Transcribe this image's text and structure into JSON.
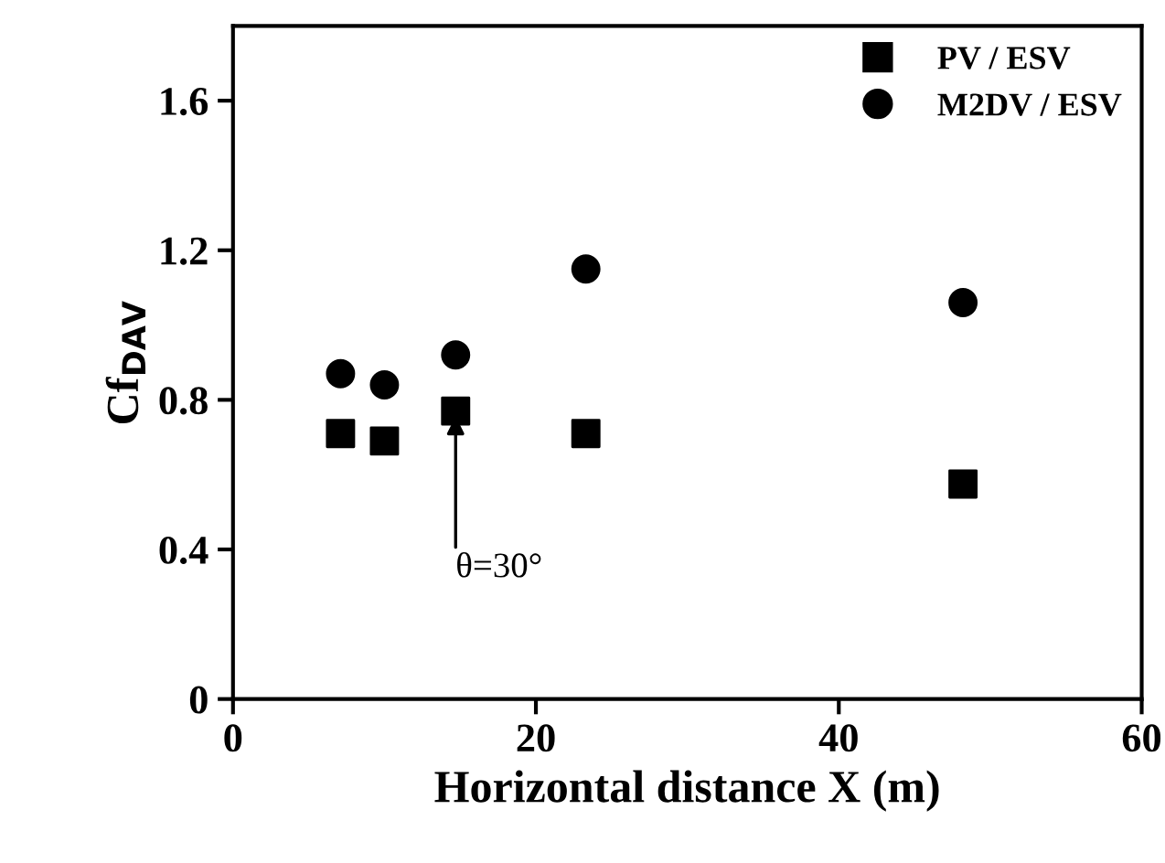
{
  "chart_data": {
    "type": "scatter",
    "xlabel": "Horizontal distance X (m)",
    "ylabel": "Cf$_{DAV}$",
    "x": [
      7.1,
      10.0,
      14.7,
      23.3,
      48.2
    ],
    "series": [
      {
        "name": "PV / ESV",
        "color": "#000000",
        "marker": "square",
        "values": [
          0.71,
          0.69,
          0.77,
          0.71,
          0.575
        ]
      },
      {
        "name": "M2DV / ESV",
        "color": "#000000",
        "marker": "circle",
        "values": [
          0.87,
          0.84,
          0.92,
          1.15,
          1.06
        ]
      }
    ],
    "annotations": [
      {
        "text": "θ=30°",
        "x": 14.7,
        "y": 0.77
      }
    ],
    "xlim": [
      0,
      60
    ],
    "xticks": [
      0,
      20,
      40,
      60
    ],
    "ylim": [
      0,
      1.8
    ],
    "yticks": [
      0,
      0.4,
      0.8,
      1.2,
      1.6
    ],
    "grid": false,
    "legend": "top right"
  }
}
